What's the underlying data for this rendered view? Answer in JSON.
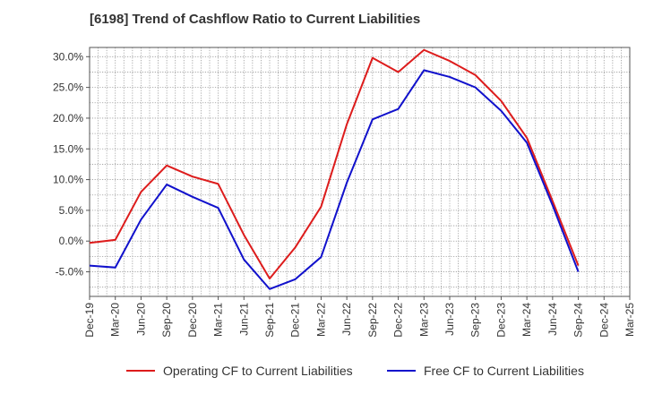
{
  "chart_data": {
    "type": "line",
    "title": "[6198]  Trend of Cashflow Ratio to Current Liabilities",
    "xlabel": "",
    "ylabel": "",
    "x_ticks": [
      "Dec-19",
      "Mar-20",
      "Jun-20",
      "Sep-20",
      "Dec-20",
      "Mar-21",
      "Jun-21",
      "Sep-21",
      "Dec-21",
      "Mar-22",
      "Jun-22",
      "Sep-22",
      "Dec-22",
      "Mar-23",
      "Jun-23",
      "Sep-23",
      "Dec-23",
      "Mar-24",
      "Jun-24",
      "Sep-24",
      "Dec-24",
      "Mar-25"
    ],
    "y_ticks": [
      "30.0%",
      "25.0%",
      "20.0%",
      "15.0%",
      "10.0%",
      "5.0%",
      "0.0%",
      "-5.0%"
    ],
    "ylim": [
      -9,
      31.5
    ],
    "y_tick_values": [
      30,
      25,
      20,
      15,
      10,
      5,
      0,
      -5
    ],
    "grid": true,
    "legend_position": "bottom",
    "series": [
      {
        "name": "Operating CF to Current Liabilities",
        "color": "#dd1c1c",
        "points": [
          [
            "Dec-19",
            -0.3
          ],
          [
            "Mar-20",
            0.2
          ],
          [
            "Jun-20",
            8.0
          ],
          [
            "Sep-20",
            12.3
          ],
          [
            "Dec-20",
            10.5
          ],
          [
            "Mar-21",
            9.3
          ],
          [
            "Jun-21",
            1.0
          ],
          [
            "Sep-21",
            -6.1
          ],
          [
            "Dec-21",
            -1.0
          ],
          [
            "Mar-22",
            5.6
          ],
          [
            "Jun-22",
            19.0
          ],
          [
            "Sep-22",
            29.8
          ],
          [
            "Dec-22",
            27.5
          ],
          [
            "Mar-23",
            31.1
          ],
          [
            "Jun-23",
            29.3
          ],
          [
            "Sep-23",
            27.0
          ],
          [
            "Dec-23",
            22.8
          ],
          [
            "Mar-24",
            16.8
          ],
          [
            "Jun-24",
            6.5
          ],
          [
            "Sep-24",
            -4.0
          ]
        ]
      },
      {
        "name": "Free CF to Current Liabilities",
        "color": "#1111cc",
        "points": [
          [
            "Dec-19",
            -4.0
          ],
          [
            "Mar-20",
            -4.3
          ],
          [
            "Jun-20",
            3.5
          ],
          [
            "Sep-20",
            9.2
          ],
          [
            "Dec-20",
            7.2
          ],
          [
            "Mar-21",
            5.4
          ],
          [
            "Jun-21",
            -3.0
          ],
          [
            "Sep-21",
            -7.8
          ],
          [
            "Dec-21",
            -6.2
          ],
          [
            "Mar-22",
            -2.6
          ],
          [
            "Jun-22",
            9.5
          ],
          [
            "Sep-22",
            19.8
          ],
          [
            "Dec-22",
            21.5
          ],
          [
            "Mar-23",
            27.8
          ],
          [
            "Jun-23",
            26.7
          ],
          [
            "Sep-23",
            25.0
          ],
          [
            "Dec-23",
            21.2
          ],
          [
            "Mar-24",
            16.0
          ],
          [
            "Jun-24",
            5.8
          ],
          [
            "Sep-24",
            -5.0
          ]
        ]
      }
    ]
  }
}
